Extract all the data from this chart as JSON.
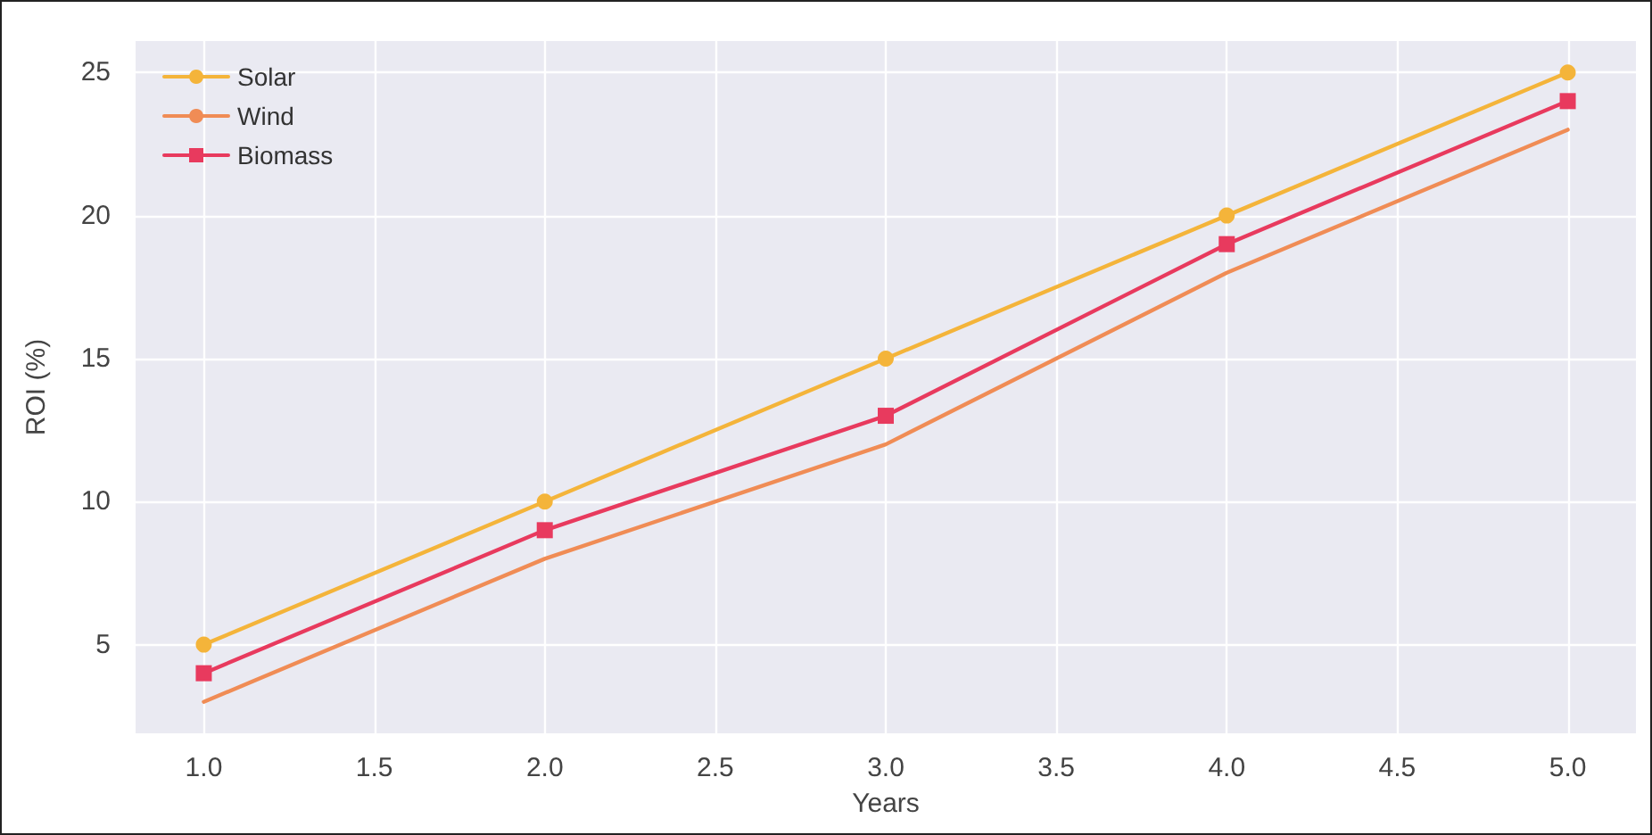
{
  "chart_data": {
    "type": "line",
    "xlabel": "Years",
    "ylabel": "ROI (%)",
    "x": [
      1,
      2,
      3,
      4,
      5
    ],
    "series": [
      {
        "name": "Solar",
        "color": "#f4b43a",
        "marker": "circle",
        "values": [
          5,
          10,
          15,
          20,
          25
        ]
      },
      {
        "name": "Wind",
        "color": "#f08c55",
        "marker": "none",
        "values": [
          3,
          8,
          12,
          18,
          23
        ]
      },
      {
        "name": "Biomass",
        "color": "#e83a5e",
        "marker": "square",
        "values": [
          4,
          9,
          13,
          19,
          24
        ]
      }
    ],
    "xlim": [
      0.8,
      5.2
    ],
    "xticks": [
      {
        "value": 1,
        "label": "1.0"
      },
      {
        "value": 1.5,
        "label": "1.5"
      },
      {
        "value": 2,
        "label": "2.0"
      },
      {
        "value": 2.5,
        "label": "2.5"
      },
      {
        "value": 3,
        "label": "3.0"
      },
      {
        "value": 3.5,
        "label": "3.5"
      },
      {
        "value": 4,
        "label": "4.0"
      },
      {
        "value": 4.5,
        "label": "4.5"
      },
      {
        "value": 5,
        "label": "5.0"
      }
    ],
    "ylim": [
      1.9,
      26.1
    ],
    "yticks": [
      5,
      10,
      15,
      20,
      25
    ],
    "grid": true,
    "legend": "top left",
    "line_style": "solid"
  }
}
